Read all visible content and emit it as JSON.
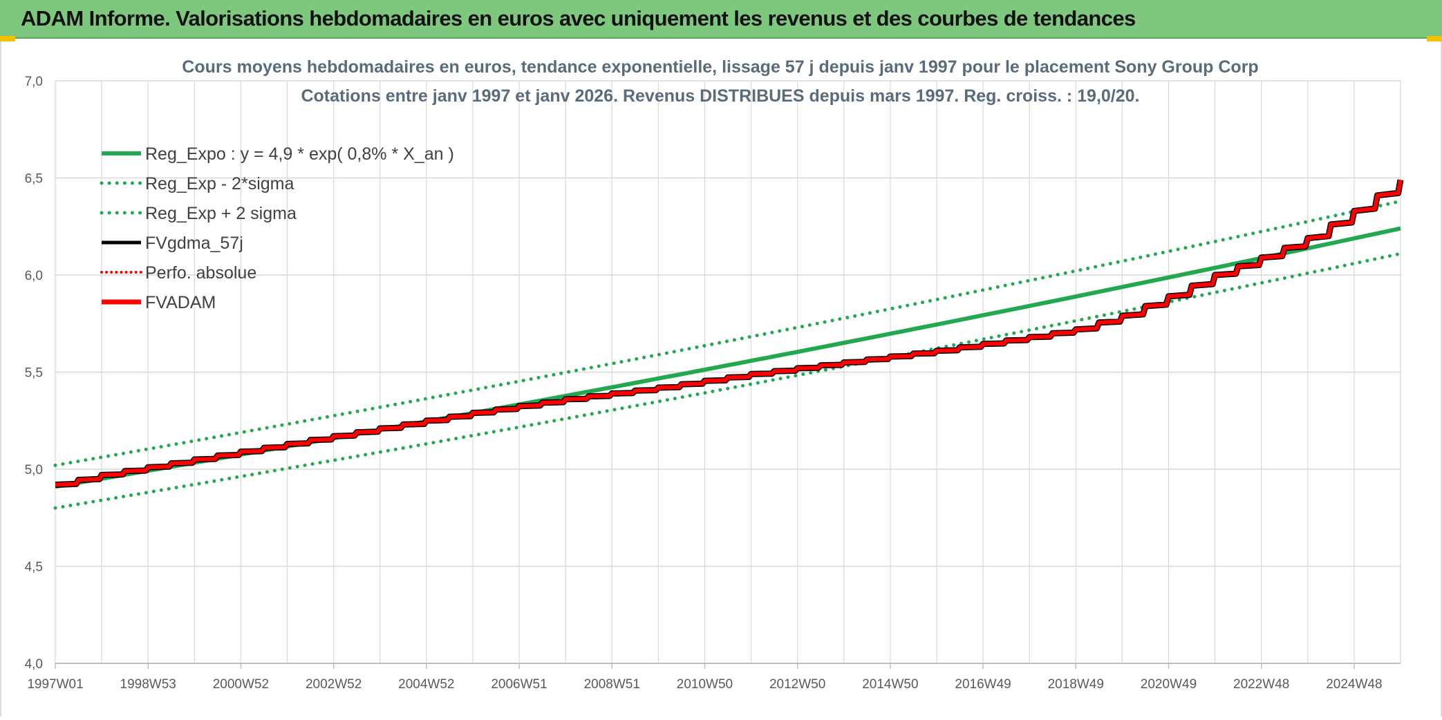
{
  "header": {
    "title": "ADAM Informe. Valorisations hebdomadaires en euros avec uniquement les revenus et des courbes de tendances"
  },
  "colors": {
    "header_bg": "#7ec77e",
    "reg_expo": "#22a94f",
    "fvgdma": "#000000",
    "fvadam": "#ff0000",
    "perfo": "#ff0000",
    "grid": "#d9d9d9"
  },
  "chart_data": {
    "type": "line",
    "title": "Cours moyens hebdomadaires en euros, tendance exponentielle, lissage 57 j depuis janv 1997 pour le placement Sony Group Corp",
    "subtitle": "Cotations entre janv 1997 et janv 2026. Revenus DISTRIBUES depuis mars 1997. Reg. croiss. : 19,0/20.",
    "xlabel": "",
    "ylabel": "",
    "ylim": [
      4.0,
      7.0
    ],
    "yticks": [
      "4,0",
      "4,5",
      "5,0",
      "5,5",
      "6,0",
      "6,5",
      "7,0"
    ],
    "x_tick_labels": [
      "1997W01",
      "1998W53",
      "2000W52",
      "2002W52",
      "2004W52",
      "2006W51",
      "2008W51",
      "2010W50",
      "2012W50",
      "2014W50",
      "2016W49",
      "2018W49",
      "2020W49",
      "2022W48",
      "2024W48"
    ],
    "x_range_years": [
      1997.0,
      2026.0
    ],
    "grid": true,
    "legend_position": "top-left",
    "legend": [
      {
        "label": "Reg_Expo : y = 4,9 * exp( 0,8% *  X_an )",
        "style": "solid-green"
      },
      {
        "label": "Reg_Exp - 2*sigma",
        "style": "dotted-green"
      },
      {
        "label": "Reg_Exp + 2 sigma",
        "style": "dotted-green"
      },
      {
        "label": "FVgdma_57j",
        "style": "solid-black"
      },
      {
        "label": "Perfo. absolue",
        "style": "dotted-red"
      },
      {
        "label": "FVADAM",
        "style": "solid-red"
      }
    ],
    "series": [
      {
        "name": "Reg_Expo : y = 4,9 * exp( 0,8% *  X_an )",
        "x": [
          1997,
          2026
        ],
        "y": [
          4.91,
          6.24
        ]
      },
      {
        "name": "Reg_Exp - 2*sigma",
        "x": [
          1997,
          2026
        ],
        "y": [
          4.8,
          6.11
        ]
      },
      {
        "name": "Reg_Exp + 2 sigma",
        "x": [
          1997,
          2026
        ],
        "y": [
          5.02,
          6.38
        ]
      },
      {
        "name": "FVADAM",
        "x": [
          1997.0,
          1998.0,
          2000.0,
          2002.0,
          2004.0,
          2006.0,
          2008.0,
          2010.0,
          2012.0,
          2014.0,
          2016.0,
          2018.0,
          2019.0,
          2020.0,
          2021.0,
          2022.0,
          2023.0,
          2024.0,
          2025.0,
          2026.0
        ],
        "y": [
          4.92,
          4.97,
          5.05,
          5.13,
          5.21,
          5.29,
          5.36,
          5.42,
          5.49,
          5.55,
          5.61,
          5.68,
          5.72,
          5.79,
          5.89,
          6.0,
          6.09,
          6.19,
          6.33,
          6.49
        ]
      }
    ]
  }
}
